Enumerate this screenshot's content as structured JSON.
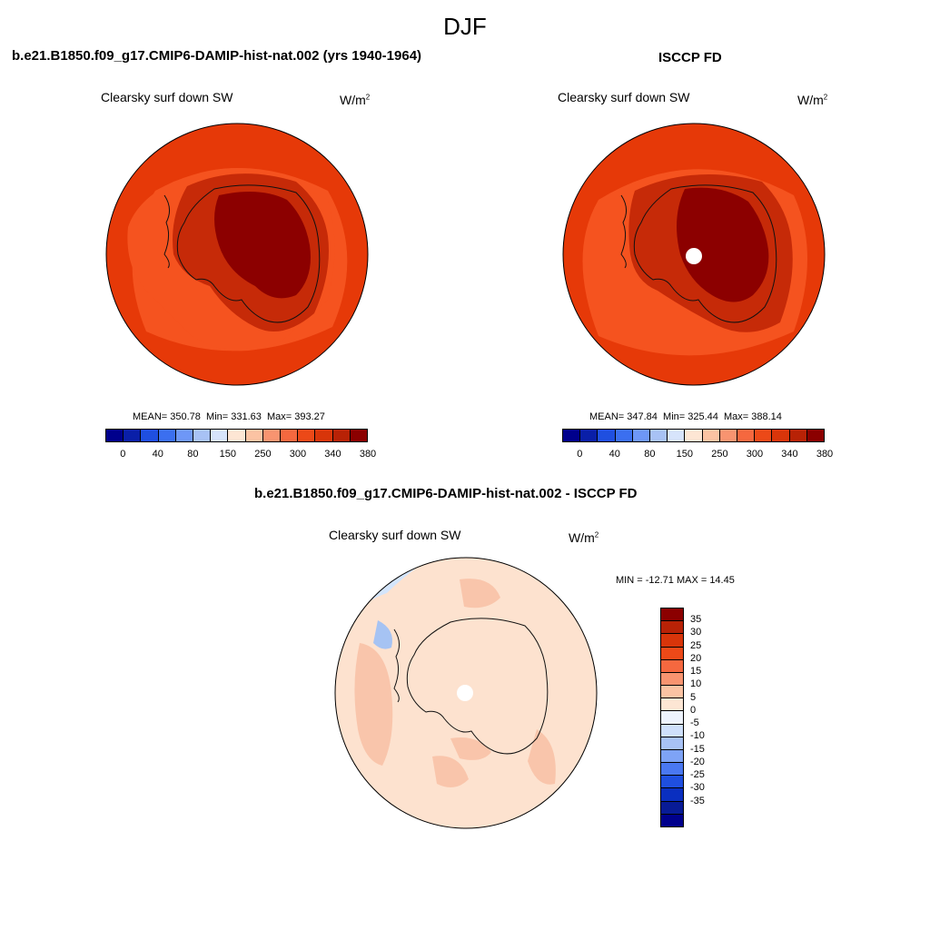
{
  "figure": {
    "season": "DJF"
  },
  "panels": [
    {
      "title": "b.e21.B1850.f09_g17.CMIP6-DAMIP-hist-nat.002 (yrs 1940-1964)",
      "variable": "Clearsky surf down SW",
      "units": "W/m",
      "units_sup": "2",
      "mean_label": "MEAN= 350.78",
      "min_label": "Min= 331.63",
      "max_label": "Max= 393.27"
    },
    {
      "title": "ISCCP FD",
      "variable": "Clearsky surf down SW",
      "units": "W/m",
      "units_sup": "2",
      "mean_label": "MEAN= 347.84",
      "min_label": "Min= 325.44",
      "max_label": "Max= 388.14"
    },
    {
      "title": "b.e21.B1850.f09_g17.CMIP6-DAMIP-hist-nat.002 - ISCCP FD",
      "variable": "Clearsky surf down SW",
      "units": "W/m",
      "units_sup": "2",
      "minmax_label": "MIN = -12.71 MAX =  14.45"
    }
  ],
  "colorbar_abs": {
    "colors": [
      "#00008c",
      "#0a1fa8",
      "#1f4fe0",
      "#3b6ff0",
      "#6e97f7",
      "#a8c2f5",
      "#d7e4fb",
      "#fde6d4",
      "#fbc3a3",
      "#f89470",
      "#f5683f",
      "#ec4918",
      "#d8350a",
      "#b82206",
      "#8b0000"
    ],
    "ticks": [
      "0",
      "40",
      "80",
      "150",
      "250",
      "300",
      "340",
      "380"
    ]
  },
  "colorbar_diff": {
    "colors": [
      "#8b0000",
      "#b82206",
      "#d8350a",
      "#ec4918",
      "#f5683f",
      "#f89470",
      "#fbc3a3",
      "#fde6d4",
      "#eef3fd",
      "#cfe0fb",
      "#a8c2f5",
      "#7ea3f6",
      "#4a78f2",
      "#1f4fe0",
      "#0a2fc0",
      "#081b96",
      "#00008c"
    ],
    "ticks": [
      "35",
      "30",
      "25",
      "20",
      "15",
      "10",
      "5",
      "0",
      "-5",
      "-10",
      "-15",
      "-20",
      "-25",
      "-30",
      "-35"
    ]
  },
  "colors": {
    "ocean_outer": "#e63908",
    "ocean_mid": "#f5531f",
    "coast_band": "#c62a08",
    "interior": "#8c0000",
    "diff_base": "#fde2cf",
    "diff_pos": "#f9c5ab",
    "diff_neg": "#d4e5fb",
    "diff_neg_strong": "#a6c3f3"
  }
}
